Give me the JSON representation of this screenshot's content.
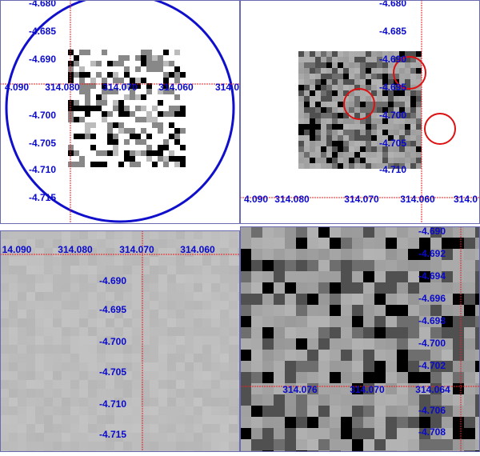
{
  "panels": [
    {
      "x_labels": [
        "4.090",
        "314.080",
        "314.070",
        "314.060",
        "314.0"
      ],
      "y_labels": [
        "-4.680",
        "-4.685",
        "-4.690",
        "-4.700",
        "-4.705",
        "-4.710",
        "-4.715"
      ]
    },
    {
      "x_labels": [
        "4.090",
        "314.080",
        "314.070",
        "314.060",
        "314.0"
      ],
      "y_labels": [
        "-4.680",
        "-4.685",
        "-4.690",
        "-4.695",
        "-4.700",
        "-4.705",
        "-4.710"
      ]
    },
    {
      "x_labels": [
        "14.090",
        "314.080",
        "314.070",
        "314.060"
      ],
      "y_labels": [
        "-4.690",
        "-4.695",
        "-4.700",
        "-4.705",
        "-4.710",
        "-4.715"
      ]
    },
    {
      "x_labels": [
        "314.076",
        "314.070",
        "314.064"
      ],
      "y_labels": [
        "-4.690",
        "-4.692",
        "-4.694",
        "-4.696",
        "-4.698",
        "-4.700",
        "-4.702",
        "-4.706",
        "-4.708"
      ]
    }
  ]
}
